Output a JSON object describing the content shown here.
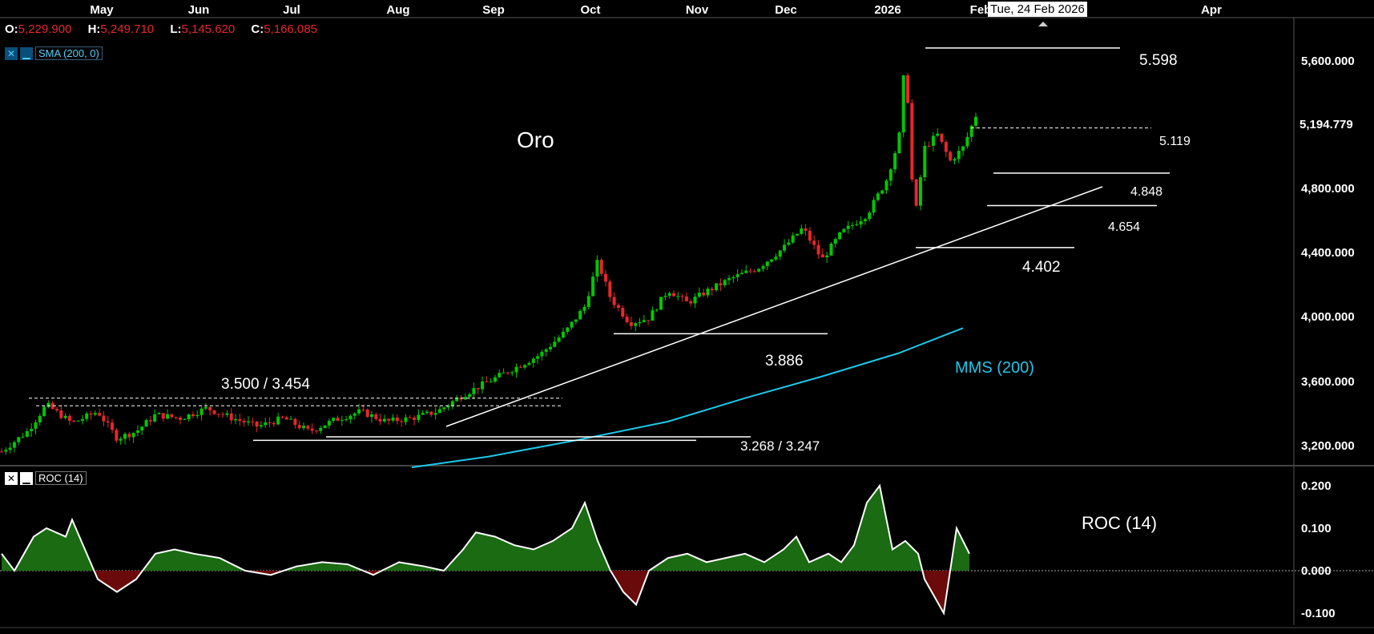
{
  "ohlc": {
    "o_label": "O:",
    "o": "5,229.900",
    "h_label": "H:",
    "h": "5,249.710",
    "l_label": "L:",
    "l": "5,145.620",
    "c_label": "C:",
    "c": "5,166.085"
  },
  "indicators": {
    "sma": {
      "name": "SMA (200, 0)",
      "close_glyph": "✕",
      "min_glyph": "▁"
    },
    "roc": {
      "name": "ROC (14)",
      "close_glyph": "✕",
      "min_glyph": "▁"
    }
  },
  "crosshair_date": "Tue, 24 Feb 2026",
  "colors": {
    "background": "#000000",
    "up": "#00c800",
    "down": "#e8262b",
    "sma": "#1ec8e8",
    "roc_pos": "#1a6b12",
    "roc_neg": "#6b0a0a",
    "price_axis_text": "#ffffff"
  },
  "chart_data": [
    {
      "type": "candlestick",
      "title": "Oro",
      "x_ticks": [
        "May",
        "Jun",
        "Jul",
        "Aug",
        "Sep",
        "Oct",
        "Nov",
        "Dec",
        "2026",
        "Feb",
        "Apr"
      ],
      "y_ticks": [
        "3,200.000",
        "3,600.000",
        "4,000.000",
        "4,400.000",
        "4,800.000",
        "5,600.000"
      ],
      "ylim": [
        3100,
        5780
      ],
      "last_price": "5,194.779",
      "series": [
        {
          "name": "MMS (200)",
          "kind": "line",
          "values": [
            [
              0.32,
              3085
            ],
            [
              0.38,
              3150
            ],
            [
              0.45,
              3250
            ],
            [
              0.52,
              3360
            ],
            [
              0.58,
              3500
            ],
            [
              0.64,
              3630
            ],
            [
              0.7,
              3770
            ],
            [
              0.75,
              3920
            ]
          ]
        }
      ],
      "annotations": [
        {
          "label": "3.500 / 3.454",
          "level": [
            3500,
            3454
          ]
        },
        {
          "label": "3.268 / 3.247",
          "level": [
            3268,
            3247
          ]
        },
        {
          "label": "3.886",
          "level": [
            3886
          ]
        },
        {
          "label": "4.402",
          "level": [
            4402
          ]
        },
        {
          "label": "4.654",
          "level": [
            4654
          ]
        },
        {
          "label": "4.848",
          "level": [
            4848
          ]
        },
        {
          "label": "5.119",
          "level": [
            5119
          ]
        },
        {
          "label": "5.598",
          "level": [
            5598
          ]
        }
      ],
      "candle_anchors": [
        [
          0.0,
          3180
        ],
        [
          0.02,
          3300
        ],
        [
          0.035,
          3460
        ],
        [
          0.055,
          3350
        ],
        [
          0.075,
          3420
        ],
        [
          0.09,
          3260
        ],
        [
          0.105,
          3300
        ],
        [
          0.12,
          3400
        ],
        [
          0.14,
          3380
        ],
        [
          0.16,
          3440
        ],
        [
          0.18,
          3380
        ],
        [
          0.2,
          3330
        ],
        [
          0.22,
          3380
        ],
        [
          0.24,
          3300
        ],
        [
          0.26,
          3370
        ],
        [
          0.28,
          3420
        ],
        [
          0.3,
          3360
        ],
        [
          0.32,
          3380
        ],
        [
          0.34,
          3420
        ],
        [
          0.36,
          3520
        ],
        [
          0.38,
          3600
        ],
        [
          0.4,
          3680
        ],
        [
          0.42,
          3760
        ],
        [
          0.44,
          3900
        ],
        [
          0.455,
          4050
        ],
        [
          0.465,
          4320
        ],
        [
          0.475,
          4100
        ],
        [
          0.49,
          3950
        ],
        [
          0.505,
          3980
        ],
        [
          0.52,
          4150
        ],
        [
          0.535,
          4070
        ],
        [
          0.55,
          4140
        ],
        [
          0.57,
          4220
        ],
        [
          0.59,
          4280
        ],
        [
          0.61,
          4400
        ],
        [
          0.625,
          4520
        ],
        [
          0.64,
          4330
        ],
        [
          0.655,
          4490
        ],
        [
          0.675,
          4600
        ],
        [
          0.69,
          4800
        ],
        [
          0.7,
          5050
        ],
        [
          0.705,
          5560
        ],
        [
          0.712,
          4550
        ],
        [
          0.72,
          5000
        ],
        [
          0.73,
          5080
        ],
        [
          0.74,
          4920
        ],
        [
          0.75,
          5000
        ],
        [
          0.76,
          5194
        ]
      ]
    },
    {
      "type": "area",
      "title": "ROC (14)",
      "y_ticks": [
        "0.200",
        "0.100",
        "0.000",
        "-0.100"
      ],
      "ylim": [
        -0.12,
        0.22
      ],
      "series": [
        {
          "name": "ROC (14)",
          "values": [
            [
              0.0,
              0.04
            ],
            [
              0.01,
              0.0
            ],
            [
              0.025,
              0.08
            ],
            [
              0.035,
              0.1
            ],
            [
              0.05,
              0.08
            ],
            [
              0.055,
              0.12
            ],
            [
              0.065,
              0.05
            ],
            [
              0.075,
              -0.02
            ],
            [
              0.09,
              -0.05
            ],
            [
              0.105,
              -0.02
            ],
            [
              0.12,
              0.04
            ],
            [
              0.135,
              0.05
            ],
            [
              0.15,
              0.04
            ],
            [
              0.17,
              0.03
            ],
            [
              0.19,
              0.0
            ],
            [
              0.21,
              -0.01
            ],
            [
              0.23,
              0.01
            ],
            [
              0.25,
              0.02
            ],
            [
              0.27,
              0.015
            ],
            [
              0.29,
              -0.01
            ],
            [
              0.31,
              0.02
            ],
            [
              0.33,
              0.01
            ],
            [
              0.345,
              0.0
            ],
            [
              0.36,
              0.05
            ],
            [
              0.37,
              0.09
            ],
            [
              0.385,
              0.08
            ],
            [
              0.4,
              0.06
            ],
            [
              0.415,
              0.05
            ],
            [
              0.43,
              0.07
            ],
            [
              0.445,
              0.1
            ],
            [
              0.455,
              0.16
            ],
            [
              0.465,
              0.07
            ],
            [
              0.475,
              0.0
            ],
            [
              0.485,
              -0.05
            ],
            [
              0.495,
              -0.08
            ],
            [
              0.505,
              0.0
            ],
            [
              0.52,
              0.03
            ],
            [
              0.535,
              0.04
            ],
            [
              0.55,
              0.02
            ],
            [
              0.565,
              0.03
            ],
            [
              0.58,
              0.04
            ],
            [
              0.595,
              0.02
            ],
            [
              0.61,
              0.05
            ],
            [
              0.62,
              0.08
            ],
            [
              0.63,
              0.02
            ],
            [
              0.645,
              0.04
            ],
            [
              0.655,
              0.02
            ],
            [
              0.665,
              0.06
            ],
            [
              0.675,
              0.16
            ],
            [
              0.685,
              0.2
            ],
            [
              0.695,
              0.05
            ],
            [
              0.705,
              0.07
            ],
            [
              0.715,
              0.04
            ],
            [
              0.72,
              -0.02
            ],
            [
              0.735,
              -0.1
            ],
            [
              0.745,
              0.1
            ],
            [
              0.755,
              0.04
            ]
          ]
        }
      ]
    }
  ],
  "roc_label": "ROC (14)",
  "sma_label": "MMS (200)"
}
